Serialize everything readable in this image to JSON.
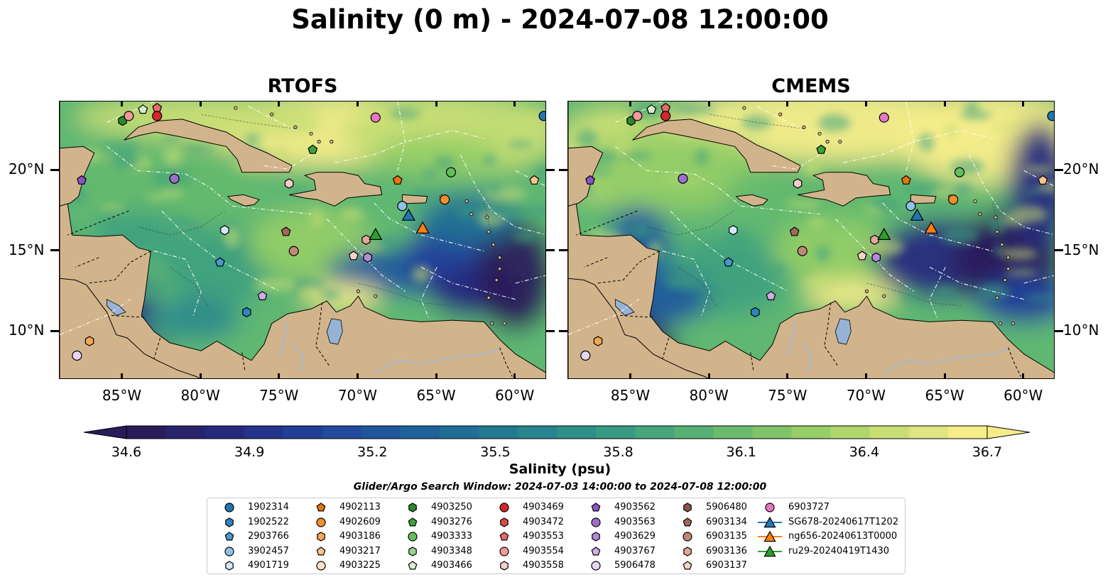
{
  "title": "Salinity (0 m) - 2024-07-08 12:00:00",
  "panels": [
    {
      "title": "RTOFS",
      "variant": "rtofs"
    },
    {
      "title": "CMEMS",
      "variant": "cmems"
    }
  ],
  "axes": {
    "lon_ticks": [
      "85°W",
      "80°W",
      "75°W",
      "70°W",
      "65°W",
      "60°W"
    ],
    "lat_ticks": [
      "20°N",
      "15°N",
      "10°N"
    ],
    "lon_values": [
      -85,
      -80,
      -75,
      -70,
      -65,
      -60
    ],
    "lat_values": [
      20,
      15,
      10
    ],
    "lon_range": [
      -89,
      -58
    ],
    "lat_range": [
      7,
      24.3
    ]
  },
  "colorbar": {
    "label": "Salinity (psu)",
    "ticks": [
      "34.6",
      "34.9",
      "35.2",
      "35.5",
      "35.8",
      "36.1",
      "36.4",
      "36.7"
    ],
    "colors": [
      "#2a1c5a",
      "#262a7e",
      "#22409a",
      "#1f5a9c",
      "#207194",
      "#2a8a8c",
      "#3fa07e",
      "#63b86e",
      "#92cc66",
      "#c6dd74",
      "#f6ec8a"
    ]
  },
  "search_window": "Glider/Argo Search Window: 2024-07-03 14:00:00 to 2024-07-08 12:00:00",
  "legend": {
    "columns": [
      [
        {
          "label": "1902314",
          "shape": "circle",
          "color": "#1f77b4"
        },
        {
          "label": "1902522",
          "shape": "hexagon",
          "color": "#2f86c0"
        },
        {
          "label": "2903766",
          "shape": "pentagon",
          "color": "#4a97cf"
        },
        {
          "label": "3902457",
          "shape": "circle",
          "color": "#8fc2e8"
        },
        {
          "label": "4901719",
          "shape": "hexagon",
          "color": "#d3e8f7"
        }
      ],
      [
        {
          "label": "4902113",
          "shape": "pentagon",
          "color": "#e8740e"
        },
        {
          "label": "4902609",
          "shape": "circle",
          "color": "#f28e2b"
        },
        {
          "label": "4903186",
          "shape": "hexagon",
          "color": "#f7a651"
        },
        {
          "label": "4903217",
          "shape": "pentagon",
          "color": "#fbc58a"
        },
        {
          "label": "4903225",
          "shape": "circle",
          "color": "#fde0c0"
        }
      ],
      [
        {
          "label": "4903250",
          "shape": "hexagon",
          "color": "#2a8a2a"
        },
        {
          "label": "4903276",
          "shape": "pentagon",
          "color": "#3ca33c"
        },
        {
          "label": "4903333",
          "shape": "circle",
          "color": "#62bf5b"
        },
        {
          "label": "4903348",
          "shape": "hexagon",
          "color": "#98d68f"
        },
        {
          "label": "4903466",
          "shape": "pentagon",
          "color": "#d4f0cc"
        }
      ],
      [
        {
          "label": "4903469",
          "shape": "circle",
          "color": "#d62728"
        },
        {
          "label": "4903472",
          "shape": "hexagon",
          "color": "#e04848"
        },
        {
          "label": "4903553",
          "shape": "pentagon",
          "color": "#e86a6a"
        },
        {
          "label": "4903554",
          "shape": "circle",
          "color": "#f09a9a"
        },
        {
          "label": "4903558",
          "shape": "hexagon",
          "color": "#f8cccc"
        }
      ],
      [
        {
          "label": "4903562",
          "shape": "pentagon",
          "color": "#8a55c0"
        },
        {
          "label": "4903563",
          "shape": "circle",
          "color": "#9d6dcc"
        },
        {
          "label": "4903629",
          "shape": "hexagon",
          "color": "#b58ad9"
        },
        {
          "label": "4903767",
          "shape": "pentagon",
          "color": "#cdaee6"
        },
        {
          "label": "5906478",
          "shape": "circle",
          "color": "#e6d6f3"
        }
      ],
      [
        {
          "label": "5906480",
          "shape": "hexagon",
          "color": "#8c564b"
        },
        {
          "label": "6903134",
          "shape": "pentagon",
          "color": "#a0695c"
        },
        {
          "label": "6903135",
          "shape": "circle",
          "color": "#c08878"
        },
        {
          "label": "6903136",
          "shape": "hexagon",
          "color": "#e3a89a"
        },
        {
          "label": "6903137",
          "shape": "pentagon",
          "color": "#f9d2c8"
        }
      ],
      [
        {
          "label": "6903727",
          "shape": "circle",
          "color": "#e377c2"
        },
        {
          "label": "SG678-20240617T1202",
          "shape": "triangle-line",
          "color": "#1f77b4"
        },
        {
          "label": "ng656-20240613T0000",
          "shape": "triangle-line",
          "color": "#ff7f0e"
        },
        {
          "label": "ru29-20240419T1430",
          "shape": "triangle-line",
          "color": "#2ca02c"
        }
      ]
    ]
  },
  "markers": [
    {
      "id": "1902314",
      "shape": "circle",
      "color": "#1f77b4",
      "lon": -58.2,
      "lat": 23.4
    },
    {
      "id": "4903250",
      "shape": "hexagon",
      "color": "#2a8a2a",
      "lon": -85.0,
      "lat": 23.1
    },
    {
      "id": "4903554",
      "shape": "circle",
      "color": "#f09a9a",
      "lon": -84.6,
      "lat": 23.4
    },
    {
      "id": "4903466",
      "shape": "pentagon",
      "color": "#d4f0cc",
      "lon": -83.7,
      "lat": 23.8
    },
    {
      "id": "4903553",
      "shape": "pentagon",
      "color": "#e86a6a",
      "lon": -82.8,
      "lat": 23.9
    },
    {
      "id": "4903469",
      "shape": "circle",
      "color": "#d62728",
      "lon": -82.8,
      "lat": 23.4
    },
    {
      "id": "6903727",
      "shape": "circle",
      "color": "#e377c2",
      "lon": -68.9,
      "lat": 23.3
    },
    {
      "id": "4903276",
      "shape": "pentagon",
      "color": "#3ca33c",
      "lon": -72.9,
      "lat": 21.3
    },
    {
      "id": "4903562",
      "shape": "pentagon",
      "color": "#8a55c0",
      "lon": -87.6,
      "lat": 19.4
    },
    {
      "id": "4903563",
      "shape": "circle",
      "color": "#9d6dcc",
      "lon": -81.7,
      "lat": 19.5
    },
    {
      "id": "4903558",
      "shape": "hexagon",
      "color": "#f8cccc",
      "lon": -74.4,
      "lat": 19.2
    },
    {
      "id": "4902113",
      "shape": "pentagon",
      "color": "#e8740e",
      "lon": -67.5,
      "lat": 19.4
    },
    {
      "id": "4903333",
      "shape": "circle",
      "color": "#62bf5b",
      "lon": -64.1,
      "lat": 19.9
    },
    {
      "id": "4903217",
      "shape": "pentagon",
      "color": "#fbc58a",
      "lon": -58.8,
      "lat": 19.4
    },
    {
      "id": "3902457",
      "shape": "circle",
      "color": "#8fc2e8",
      "lon": -67.2,
      "lat": 17.8
    },
    {
      "id": "4902609",
      "shape": "circle",
      "color": "#f28e2b",
      "lon": -64.5,
      "lat": 18.2
    },
    {
      "id": "4901719",
      "shape": "hexagon",
      "color": "#d3e8f7",
      "lon": -78.5,
      "lat": 16.3
    },
    {
      "id": "6903134",
      "shape": "pentagon",
      "color": "#a0695c",
      "lon": -74.6,
      "lat": 16.2
    },
    {
      "id": "6903136",
      "shape": "hexagon",
      "color": "#e3a89a",
      "lon": -69.5,
      "lat": 15.7
    },
    {
      "id": "6903135",
      "shape": "circle",
      "color": "#c08878",
      "lon": -74.1,
      "lat": 15.0
    },
    {
      "id": "4903629",
      "shape": "hexagon",
      "color": "#b58ad9",
      "lon": -69.4,
      "lat": 14.6
    },
    {
      "id": "6903137",
      "shape": "pentagon",
      "color": "#f9d2c8",
      "lon": -70.3,
      "lat": 14.7
    },
    {
      "id": "2903766",
      "shape": "pentagon",
      "color": "#4a97cf",
      "lon": -78.8,
      "lat": 14.3
    },
    {
      "id": "4903767",
      "shape": "pentagon",
      "color": "#cdaee6",
      "lon": -76.1,
      "lat": 12.2
    },
    {
      "id": "1902522",
      "shape": "hexagon",
      "color": "#2f86c0",
      "lon": -77.1,
      "lat": 11.2
    },
    {
      "id": "4903186",
      "shape": "hexagon",
      "color": "#f7a651",
      "lon": -87.1,
      "lat": 9.4
    },
    {
      "id": "5906478",
      "shape": "circle",
      "color": "#e6d6f3",
      "lon": -87.9,
      "lat": 8.5
    },
    {
      "id": "SG678-20240617T1202",
      "shape": "triangle",
      "color": "#1f77b4",
      "lon": -66.8,
      "lat": 17.2
    },
    {
      "id": "ng656-20240613T0000",
      "shape": "triangle",
      "color": "#ff7f0e",
      "lon": -65.9,
      "lat": 16.4
    },
    {
      "id": "ru29-20240419T1430",
      "shape": "triangle",
      "color": "#2ca02c",
      "lon": -68.9,
      "lat": 16.0
    }
  ]
}
